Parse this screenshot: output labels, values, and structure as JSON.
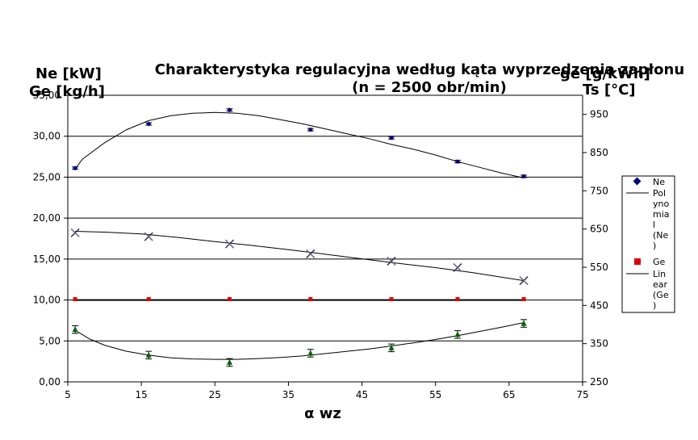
{
  "chart_data": {
    "type": "scatter",
    "title": "Charakterystyka regulacyjna według kąta wyprzedzenia zapłonu",
    "subtitle": "(n = 2500 obr/min)",
    "xlabel": "α wz",
    "ylabel_left": [
      "Ne [kW]",
      "Ge [kg/h]"
    ],
    "ylabel_right": [
      "ge [g/kWh]",
      "Ts [°C]"
    ],
    "xlim": [
      5,
      75
    ],
    "x_ticks": [
      "5",
      "15",
      "25",
      "35",
      "45",
      "55",
      "65",
      "75"
    ],
    "ylim_left": [
      0,
      35
    ],
    "y_ticks_left": [
      "0,00",
      "5,00",
      "10,00",
      "15,00",
      "20,00",
      "25,00",
      "30,00",
      "35,00"
    ],
    "ylim_right": [
      250,
      1000
    ],
    "y_ticks_right": [
      "250",
      "350",
      "450",
      "550",
      "650",
      "750",
      "850",
      "950"
    ],
    "grid": "horizontal",
    "legend_position": "right",
    "legend": [
      {
        "label": "Ne",
        "marker": "diamond",
        "color": "#000080"
      },
      {
        "label": "Polynomial (Ne)",
        "marker": "line",
        "color": "#000000"
      },
      {
        "label": "Ge",
        "marker": "square",
        "color": "#e00000"
      },
      {
        "label": "Linear (Ge)",
        "marker": "line",
        "color": "#000000"
      }
    ],
    "series": [
      {
        "name": "Ne",
        "axis": "left",
        "color": "#000080",
        "marker": "diamond",
        "x": [
          6,
          16,
          27,
          38,
          49,
          58,
          67
        ],
        "y": [
          26.1,
          31.5,
          33.2,
          30.8,
          29.8,
          26.9,
          25.1
        ]
      },
      {
        "name": "Ge",
        "axis": "left",
        "color": "#e00000",
        "marker": "square",
        "x": [
          6,
          16,
          27,
          38,
          49,
          58,
          67
        ],
        "y": [
          10.1,
          10.1,
          10.1,
          10.1,
          10.1,
          10.1,
          10.1
        ]
      },
      {
        "name": "ge",
        "axis": "right",
        "color": "#9090b0",
        "marker": "x",
        "x": [
          6,
          16,
          27,
          38,
          49,
          58,
          67
        ],
        "y": [
          640,
          630,
          611,
          585,
          566,
          549,
          515
        ]
      },
      {
        "name": "Ts",
        "axis": "right",
        "color": "#006400",
        "marker": "triangle",
        "x": [
          6,
          16,
          27,
          38,
          49,
          58,
          67
        ],
        "y": [
          387,
          320,
          301,
          325,
          339,
          374,
          403
        ]
      }
    ],
    "trendlines": [
      {
        "series": "Ne",
        "axis": "left",
        "kind": "polynomial",
        "x": [
          6,
          7,
          10,
          13,
          16,
          19,
          22,
          25,
          28,
          31,
          34,
          37,
          40,
          43,
          46,
          49,
          52,
          55,
          58,
          61,
          64,
          67
        ],
        "y": [
          26.0,
          27.2,
          29.2,
          30.8,
          31.9,
          32.5,
          32.8,
          32.9,
          32.8,
          32.5,
          32.0,
          31.5,
          30.9,
          30.3,
          29.7,
          29.0,
          28.4,
          27.7,
          26.9,
          26.2,
          25.5,
          24.9
        ]
      },
      {
        "series": "Ge",
        "axis": "left",
        "kind": "linear",
        "x": [
          6,
          67
        ],
        "y": [
          10.0,
          10.0
        ]
      },
      {
        "series": "ge",
        "axis": "right",
        "kind": "polynomial",
        "x": [
          6,
          10,
          15,
          20,
          25,
          30,
          35,
          40,
          45,
          50,
          55,
          60,
          65,
          67
        ],
        "y": [
          644,
          642,
          637,
          628,
          617,
          607,
          596,
          584,
          572,
          560,
          549,
          536,
          521,
          515
        ]
      },
      {
        "series": "Ts",
        "axis": "right",
        "kind": "polynomial",
        "x": [
          6,
          8,
          10,
          13,
          16,
          19,
          22,
          25,
          28,
          31,
          34,
          37,
          40,
          43,
          46,
          49,
          52,
          55,
          58,
          61,
          64,
          67
        ],
        "y": [
          385,
          362,
          346,
          330,
          320,
          313,
          310,
          309,
          309,
          311,
          314,
          318,
          324,
          330,
          336,
          344,
          352,
          361,
          371,
          382,
          393,
          405
        ]
      }
    ],
    "error_bars": {
      "Ne": 0.15,
      "Ts": 10
    }
  }
}
